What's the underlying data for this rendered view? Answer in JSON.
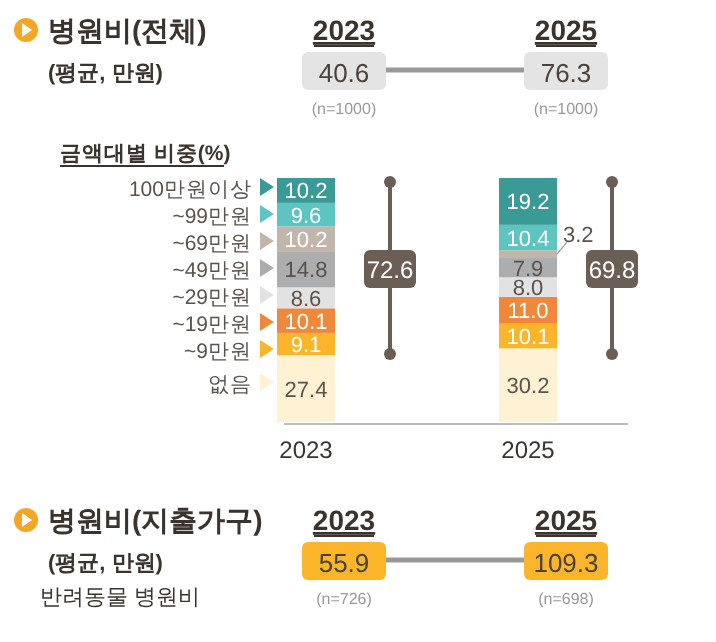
{
  "chart_data": [
    {
      "type": "other",
      "title": "병원비(전체)",
      "subtitle": "(평균, 만원)",
      "categories": [
        "2023",
        "2025"
      ],
      "values": [
        40.6,
        76.3
      ],
      "data_labels": true,
      "colors": [
        "#e4e4e4",
        "#e4e4e4"
      ],
      "annotations": [
        "(n=1000)",
        "(n=1000)"
      ]
    },
    {
      "type": "bar",
      "stacked": true,
      "title": "금액대별 비중(%)",
      "categories": [
        "2023",
        "2025"
      ],
      "ylim": [
        0,
        100
      ],
      "tick_labels": "x",
      "legend": "left",
      "series": [
        {
          "name": "없음",
          "color": "#fef2d2",
          "values": [
            27.4,
            30.2
          ],
          "value_labels": [
            "27.4",
            "30.2"
          ]
        },
        {
          "name": "~9만원",
          "color": "#fbb52b",
          "values": [
            9.1,
            10.1
          ],
          "value_labels": [
            "9.1",
            "10.1"
          ]
        },
        {
          "name": "~19만원",
          "color": "#f0883c",
          "values": [
            10.1,
            11.0
          ],
          "value_labels": [
            "10.1",
            "11.0"
          ]
        },
        {
          "name": "~29만원",
          "color": "#e2e2e2",
          "values": [
            8.6,
            8.0
          ],
          "value_labels": [
            "8.6",
            "8.0"
          ]
        },
        {
          "name": "~49만원",
          "color": "#acadae",
          "values": [
            14.8,
            7.9
          ],
          "value_labels": [
            "14.8",
            "7.9"
          ]
        },
        {
          "name": "~69만원",
          "color": "#c2b6aa",
          "values": [
            10.2,
            3.2
          ],
          "value_labels": [
            "10.2",
            "3.2"
          ]
        },
        {
          "name": "~99만원",
          "color": "#5cc4c1",
          "values": [
            9.6,
            10.4
          ],
          "value_labels": [
            "9.6",
            "10.4"
          ]
        },
        {
          "name": "100만원이상",
          "color": "#3a9a96",
          "values": [
            10.2,
            19.2
          ],
          "value_labels": [
            "10.2",
            "19.2"
          ]
        }
      ],
      "annotations": [
        "72.6",
        "69.8"
      ]
    },
    {
      "type": "other",
      "title": "병원비(지출가구)",
      "subtitle": "(평균, 만원)",
      "categories": [
        "2023",
        "2025"
      ],
      "values": [
        55.9,
        109.3
      ],
      "data_labels": true,
      "colors": [
        "#fbb52b",
        "#fbb52b"
      ],
      "annotations": [
        "반려동물 병원비",
        "(n=726)",
        "(n=698)"
      ]
    }
  ]
}
